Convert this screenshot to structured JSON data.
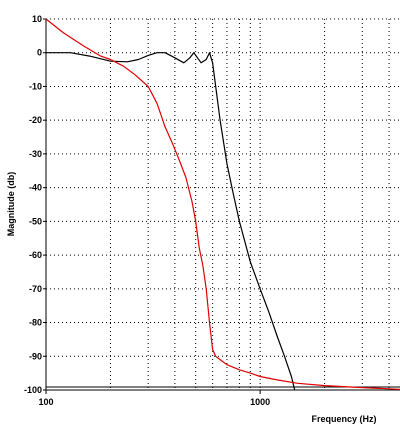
{
  "chart_data": {
    "type": "line",
    "xlabel": "Frequency (Hz)",
    "ylabel": "Magnitude (db)",
    "x_scale": "log",
    "xlim": [
      100,
      4500
    ],
    "ylim": [
      -100,
      10
    ],
    "grid": true,
    "y_ticks": [
      "10",
      "0",
      "-10",
      "-20",
      "-30",
      "-40",
      "-50",
      "-60",
      "-70",
      "-80",
      "-90",
      "-100"
    ],
    "x_ticks": [
      "100",
      "1000"
    ],
    "series": [
      {
        "color": "#000000",
        "points": [
          [
            100,
            0
          ],
          [
            130,
            0
          ],
          [
            160,
            -1
          ],
          [
            200,
            -2.5
          ],
          [
            240,
            -2.7
          ],
          [
            270,
            -2
          ],
          [
            300,
            -0.8
          ],
          [
            330,
            0
          ],
          [
            360,
            0
          ],
          [
            400,
            -1.5
          ],
          [
            440,
            -3
          ],
          [
            470,
            -1.5
          ],
          [
            490,
            0
          ],
          [
            510,
            -1.5
          ],
          [
            530,
            -3
          ],
          [
            560,
            -2
          ],
          [
            580,
            0
          ],
          [
            600,
            -3
          ],
          [
            650,
            -20
          ],
          [
            700,
            -33
          ],
          [
            750,
            -42
          ],
          [
            800,
            -50
          ],
          [
            900,
            -62
          ],
          [
            1000,
            -70
          ],
          [
            1100,
            -77
          ],
          [
            1200,
            -84
          ],
          [
            1300,
            -90
          ],
          [
            1400,
            -96
          ],
          [
            1450,
            -100
          ]
        ]
      },
      {
        "color": "#e00000",
        "points": [
          [
            100,
            10
          ],
          [
            120,
            6
          ],
          [
            150,
            2
          ],
          [
            180,
            -1
          ],
          [
            200,
            -2
          ],
          [
            230,
            -4
          ],
          [
            260,
            -6.5
          ],
          [
            300,
            -10
          ],
          [
            330,
            -15
          ],
          [
            360,
            -22
          ],
          [
            390,
            -27
          ],
          [
            420,
            -32
          ],
          [
            450,
            -37
          ],
          [
            480,
            -44
          ],
          [
            500,
            -50
          ],
          [
            520,
            -58
          ],
          [
            540,
            -63
          ],
          [
            560,
            -70
          ],
          [
            580,
            -80
          ],
          [
            600,
            -88
          ],
          [
            620,
            -90
          ],
          [
            650,
            -91
          ],
          [
            700,
            -92.5
          ],
          [
            800,
            -94
          ],
          [
            900,
            -95
          ],
          [
            1000,
            -96
          ],
          [
            1200,
            -97
          ],
          [
            1500,
            -98
          ],
          [
            2000,
            -98.7
          ],
          [
            3000,
            -99.3
          ],
          [
            4500,
            -99.8
          ]
        ]
      }
    ]
  }
}
